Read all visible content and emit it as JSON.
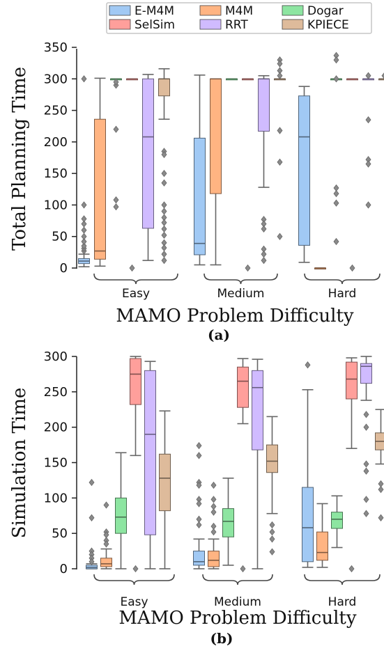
{
  "legend": {
    "items": [
      {
        "label": "E-M4M",
        "color": "#a1c9f4"
      },
      {
        "label": "M4M",
        "color": "#ffb482"
      },
      {
        "label": "Dogar",
        "color": "#8de5a1"
      },
      {
        "label": "SelSim",
        "color": "#ff9f9b"
      },
      {
        "label": "RRT",
        "color": "#d0bbff"
      },
      {
        "label": "KPIECE",
        "color": "#debb9b"
      }
    ]
  },
  "chart_data": [
    {
      "type": "box",
      "panel_label": "(a)",
      "xlabel": "MAMO Problem Difficulty",
      "ylabel": "Total Planning Time",
      "ylim": [
        0,
        350
      ],
      "yticks": [
        0,
        50,
        100,
        150,
        200,
        250,
        300,
        350
      ],
      "categories": [
        "Easy",
        "Medium",
        "Hard"
      ],
      "series": [
        {
          "name": "E-M4M",
          "boxes": [
            {
              "whislo": 2,
              "q1": 7,
              "med": 11,
              "q3": 15,
              "whishi": 22,
              "fliers": [
                27,
                31,
                35,
                42,
                50,
                60,
                70,
                78,
                100,
                300
              ]
            },
            {
              "whislo": 5,
              "q1": 21,
              "med": 39,
              "q3": 206,
              "whishi": 306,
              "fliers": []
            },
            {
              "whislo": 9,
              "q1": 36,
              "med": 208,
              "q3": 273,
              "whishi": 288,
              "fliers": []
            }
          ]
        },
        {
          "name": "M4M",
          "boxes": [
            {
              "whislo": 3,
              "q1": 14,
              "med": 27,
              "q3": 236,
              "whishi": 301,
              "fliers": []
            },
            {
              "whislo": 5,
              "q1": 118,
              "med": 300,
              "q3": 300,
              "whishi": 300,
              "fliers": []
            },
            {
              "whislo": 0,
              "q1": 0,
              "med": 0,
              "q3": 0,
              "whishi": 0,
              "fliers": []
            }
          ]
        },
        {
          "name": "Dogar",
          "boxes": [
            {
              "whislo": 300,
              "q1": 300,
              "med": 300,
              "q3": 300,
              "whishi": 300,
              "fliers": [
                290,
                295,
                220,
                108,
                97
              ]
            },
            {
              "whislo": 300,
              "q1": 300,
              "med": 300,
              "q3": 300,
              "whishi": 300,
              "fliers": []
            },
            {
              "whislo": 300,
              "q1": 300,
              "med": 300,
              "q3": 300,
              "whishi": 300,
              "fliers": [
                337,
                330,
                300,
                127,
                118,
                103,
                42
              ]
            }
          ]
        },
        {
          "name": "SelSim",
          "boxes": [
            {
              "whislo": 300,
              "q1": 300,
              "med": 300,
              "q3": 300,
              "whishi": 300,
              "fliers": [
                0
              ]
            },
            {
              "whislo": 300,
              "q1": 300,
              "med": 300,
              "q3": 300,
              "whishi": 300,
              "fliers": [
                0
              ]
            },
            {
              "whislo": 300,
              "q1": 300,
              "med": 300,
              "q3": 300,
              "whishi": 300,
              "fliers": [
                0
              ]
            }
          ]
        },
        {
          "name": "RRT",
          "boxes": [
            {
              "whislo": 12,
              "q1": 63,
              "med": 208,
              "q3": 300,
              "whishi": 307,
              "fliers": []
            },
            {
              "whislo": 128,
              "q1": 217,
              "med": 300,
              "q3": 300,
              "whishi": 305,
              "fliers": [
                77,
                70,
                62,
                30,
                22,
                12
              ]
            },
            {
              "whislo": 300,
              "q1": 300,
              "med": 300,
              "q3": 300,
              "whishi": 300,
              "fliers": [
                305,
                235,
                172,
                165,
                100
              ]
            }
          ]
        },
        {
          "name": "KPIECE",
          "boxes": [
            {
              "whislo": 236,
              "q1": 273,
              "med": 300,
              "q3": 300,
              "whishi": 316,
              "fliers": [
                185,
                180,
                150,
                135,
                100,
                90,
                80,
                72,
                62,
                52,
                40,
                32,
                22,
                12
              ]
            },
            {
              "whislo": 300,
              "q1": 300,
              "med": 300,
              "q3": 300,
              "whishi": 300,
              "fliers": [
                330,
                324,
                313,
                305,
                218,
                168,
                50
              ]
            },
            {
              "whislo": 300,
              "q1": 300,
              "med": 300,
              "q3": 300,
              "whishi": 300,
              "fliers": [
                305
              ]
            }
          ]
        }
      ]
    },
    {
      "type": "box",
      "panel_label": "(b)",
      "xlabel": "MAMO Problem Difficulty",
      "ylabel": "Simulation Time",
      "ylim": [
        0,
        300
      ],
      "yticks": [
        0,
        50,
        100,
        150,
        200,
        250,
        300
      ],
      "categories": [
        "Easy",
        "Medium",
        "Hard"
      ],
      "series": [
        {
          "name": "E-M4M",
          "boxes": [
            {
              "whislo": 0,
              "q1": 0,
              "med": 2,
              "q3": 5,
              "whishi": 7,
              "fliers": [
                122,
                72,
                25,
                20,
                15,
                10
              ]
            },
            {
              "whislo": 0,
              "q1": 5,
              "med": 10,
              "q3": 25,
              "whishi": 42,
              "fliers": [
                174,
                160,
                122,
                118,
                98,
                92,
                70,
                62
              ]
            },
            {
              "whislo": 2,
              "q1": 10,
              "med": 58,
              "q3": 115,
              "whishi": 253,
              "fliers": [
                288
              ]
            }
          ]
        },
        {
          "name": "M4M",
          "boxes": [
            {
              "whislo": 0,
              "q1": 3,
              "med": 7,
              "q3": 15,
              "whishi": 28,
              "fliers": [
                90,
                52,
                48,
                40,
                35
              ]
            },
            {
              "whislo": 0,
              "q1": 3,
              "med": 12,
              "q3": 25,
              "whishi": 42,
              "fliers": [
                118,
                98,
                88,
                80,
                60,
                52
              ]
            },
            {
              "whislo": 2,
              "q1": 12,
              "med": 23,
              "q3": 52,
              "whishi": 92,
              "fliers": []
            }
          ]
        },
        {
          "name": "Dogar",
          "boxes": [
            {
              "whislo": 0,
              "q1": 50,
              "med": 73,
              "q3": 100,
              "whishi": 164,
              "fliers": []
            },
            {
              "whislo": 5,
              "q1": 45,
              "med": 67,
              "q3": 85,
              "whishi": 128,
              "fliers": []
            },
            {
              "whislo": 30,
              "q1": 57,
              "med": 70,
              "q3": 80,
              "whishi": 103,
              "fliers": []
            }
          ]
        },
        {
          "name": "SelSim",
          "boxes": [
            {
              "whislo": 160,
              "q1": 232,
              "med": 275,
              "q3": 297,
              "whishi": 300,
              "fliers": [
                0
              ]
            },
            {
              "whislo": 205,
              "q1": 228,
              "med": 265,
              "q3": 285,
              "whishi": 297,
              "fliers": [
                0
              ]
            },
            {
              "whislo": 170,
              "q1": 240,
              "med": 268,
              "q3": 292,
              "whishi": 298,
              "fliers": [
                0
              ]
            }
          ]
        },
        {
          "name": "RRT",
          "boxes": [
            {
              "whislo": 0,
              "q1": 48,
              "med": 190,
              "q3": 280,
              "whishi": 293,
              "fliers": []
            },
            {
              "whislo": 0,
              "q1": 168,
              "med": 256,
              "q3": 280,
              "whishi": 296,
              "fliers": []
            },
            {
              "whislo": 238,
              "q1": 262,
              "med": 286,
              "q3": 290,
              "whishi": 300,
              "fliers": [
                218,
                200,
                148,
                138,
                98,
                78
              ]
            }
          ]
        },
        {
          "name": "KPIECE",
          "boxes": [
            {
              "whislo": 0,
              "q1": 82,
              "med": 128,
              "q3": 162,
              "whishi": 223,
              "fliers": []
            },
            {
              "whislo": 78,
              "q1": 136,
              "med": 152,
              "q3": 175,
              "whishi": 215,
              "fliers": [
                62,
                52,
                42,
                24
              ]
            },
            {
              "whislo": 148,
              "q1": 168,
              "med": 180,
              "q3": 192,
              "whishi": 225,
              "fliers": [
                120,
                112,
                72
              ]
            }
          ]
        }
      ]
    }
  ]
}
